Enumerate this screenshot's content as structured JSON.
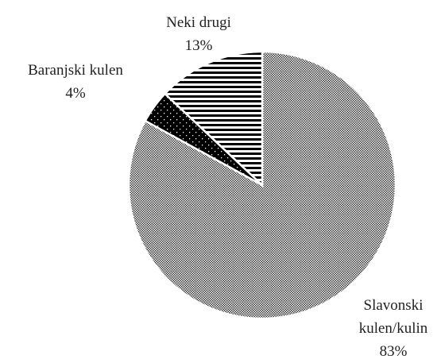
{
  "chart_data": {
    "type": "pie",
    "categories": [
      "Slavonski kulen/kulin",
      "Baranjski kulen",
      "Neki drugi"
    ],
    "values": [
      83,
      4,
      13
    ],
    "value_labels": [
      "83%",
      "4%",
      "13%"
    ],
    "patterns": [
      "checker",
      "dots",
      "stripes"
    ]
  }
}
